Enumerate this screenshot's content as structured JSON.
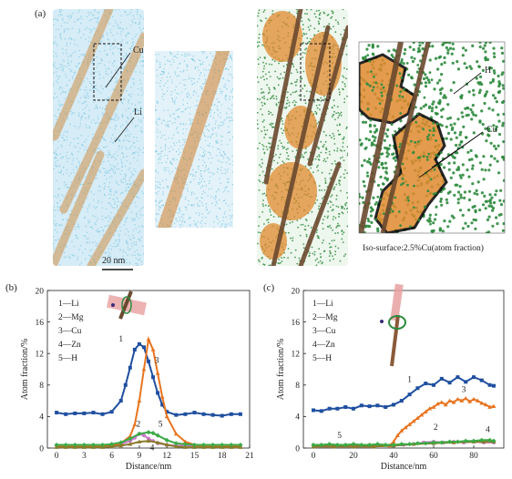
{
  "panel_a": {
    "label": "(a)",
    "labels": {
      "cu": "Cu",
      "li": "Li",
      "h": "H",
      "cu2": "Cu"
    },
    "scale_bar": "20 nm",
    "iso_caption": "Iso-surface:2.5%Cu(atom fraction)",
    "colors": {
      "li": "#7ec8e3",
      "cu": "#e08a2e",
      "h": "#2e8b3e",
      "rod": "#6b4a2f"
    }
  },
  "chart_data": [
    {
      "type": "line",
      "panel": "(b)",
      "xlabel": "Distance/nm",
      "ylabel": "Atom fraction/%",
      "xlim": [
        -1,
        21
      ],
      "ylim": [
        0,
        20
      ],
      "xticks": [
        0,
        3,
        6,
        9,
        12,
        15,
        18,
        21
      ],
      "yticks": [
        0,
        4,
        8,
        12,
        16,
        20
      ],
      "legend": [
        "1—Li",
        "2—Mg",
        "3—Cu",
        "4—Zn",
        "5—H"
      ],
      "series": [
        {
          "key": "1",
          "color": "#1f4fa0",
          "marker": "square",
          "x": [
            0,
            1,
            2,
            3,
            4,
            5,
            6,
            7,
            7.5,
            8,
            8.5,
            9,
            9.5,
            10,
            10.5,
            11,
            11.5,
            12,
            13,
            14,
            15,
            16,
            17,
            18,
            19,
            20
          ],
          "y": [
            4.5,
            4.3,
            4.4,
            4.4,
            4.5,
            4.3,
            4.6,
            6.0,
            8.0,
            10.2,
            12.5,
            13.2,
            12.8,
            11.0,
            9.0,
            7.0,
            5.5,
            4.6,
            4.2,
            4.3,
            4.5,
            4.3,
            4.2,
            4.1,
            4.3,
            4.3
          ]
        },
        {
          "key": "2",
          "color": "#c678c8",
          "marker": "circle",
          "x": [
            0,
            1,
            2,
            3,
            4,
            5,
            6,
            7,
            8,
            8.5,
            9,
            9.5,
            10,
            10.5,
            11,
            12,
            13,
            14,
            15,
            16,
            17,
            18,
            19,
            20
          ],
          "y": [
            0.3,
            0.3,
            0.3,
            0.3,
            0.3,
            0.3,
            0.3,
            0.5,
            0.9,
            1.3,
            1.8,
            1.6,
            1.2,
            0.9,
            0.6,
            0.4,
            0.3,
            0.3,
            0.3,
            0.3,
            0.3,
            0.3,
            0.3,
            0.3
          ]
        },
        {
          "key": "3",
          "color": "#e8741f",
          "marker": "triangle",
          "x": [
            0,
            1,
            2,
            3,
            4,
            5,
            6,
            7,
            8,
            8.5,
            9,
            9.5,
            10,
            10.5,
            11,
            11.5,
            12,
            13,
            14,
            15,
            16,
            17,
            18,
            19,
            20
          ],
          "y": [
            0.2,
            0.2,
            0.2,
            0.2,
            0.2,
            0.2,
            0.3,
            0.6,
            1.5,
            3.0,
            6.0,
            10.0,
            13.8,
            12.5,
            9.5,
            6.5,
            4.0,
            1.8,
            0.8,
            0.4,
            0.3,
            0.2,
            0.2,
            0.2,
            0.2
          ]
        },
        {
          "key": "4",
          "color": "#8a7a2a",
          "marker": "triangle",
          "x": [
            0,
            1,
            2,
            3,
            4,
            5,
            6,
            7,
            8,
            9,
            10,
            11,
            12,
            13,
            14,
            15,
            16,
            17,
            18,
            19,
            20
          ],
          "y": [
            0.1,
            0.1,
            0.1,
            0.1,
            0.1,
            0.1,
            0.2,
            0.3,
            0.5,
            0.8,
            0.9,
            0.7,
            0.4,
            0.2,
            0.1,
            0.1,
            0.1,
            0.1,
            0.1,
            0.1,
            0.1
          ]
        },
        {
          "key": "5",
          "color": "#3aaa45",
          "marker": "diamond",
          "x": [
            0,
            1,
            2,
            3,
            4,
            5,
            6,
            7,
            8,
            9,
            10,
            10.5,
            11,
            12,
            13,
            14,
            15,
            16,
            17,
            18,
            19,
            20
          ],
          "y": [
            0.4,
            0.4,
            0.4,
            0.4,
            0.4,
            0.4,
            0.5,
            0.7,
            1.2,
            1.8,
            2.0,
            1.9,
            1.6,
            1.0,
            0.6,
            0.5,
            0.4,
            0.4,
            0.4,
            0.4,
            0.4,
            0.4
          ]
        }
      ],
      "curve_labels": [
        {
          "text": "1",
          "x": 7.0,
          "y": 13.5
        },
        {
          "text": "2",
          "x": 8.9,
          "y": 2.7
        },
        {
          "text": "3",
          "x": 10.9,
          "y": 10.8
        },
        {
          "text": "4",
          "x": 10.4,
          "y": -0.3
        },
        {
          "text": "5",
          "x": 11.3,
          "y": 2.7
        }
      ]
    },
    {
      "type": "line",
      "panel": "(c)",
      "xlabel": "Distance/nm",
      "ylabel": "Atom fraction/%",
      "xlim": [
        -5,
        95
      ],
      "ylim": [
        0,
        20
      ],
      "xticks": [
        0,
        20,
        40,
        60,
        80
      ],
      "yticks": [
        0,
        4,
        8,
        12,
        16,
        20
      ],
      "legend": [
        "1—Li",
        "2—Mg",
        "3—Cu",
        "4—Zn",
        "5—H"
      ],
      "series": [
        {
          "key": "1",
          "color": "#1f4fa0",
          "marker": "square",
          "x": [
            0,
            4,
            8,
            12,
            16,
            20,
            24,
            28,
            32,
            36,
            40,
            44,
            48,
            52,
            56,
            60,
            64,
            68,
            72,
            76,
            80,
            84,
            88,
            90
          ],
          "y": [
            4.8,
            4.7,
            5.0,
            5.0,
            5.2,
            5.0,
            5.4,
            5.3,
            5.4,
            5.2,
            5.5,
            6.0,
            6.8,
            7.6,
            8.2,
            8.0,
            8.8,
            8.3,
            9.0,
            8.4,
            9.0,
            8.6,
            8.0,
            7.9
          ]
        },
        {
          "key": "2",
          "color": "#c678c8",
          "marker": "circle",
          "x": [
            0,
            10,
            20,
            30,
            40,
            45,
            50,
            55,
            60,
            65,
            70,
            75,
            80,
            85,
            90
          ],
          "y": [
            0.3,
            0.3,
            0.3,
            0.3,
            0.3,
            0.4,
            0.5,
            0.7,
            0.8,
            0.7,
            0.8,
            0.7,
            0.8,
            0.7,
            0.7
          ]
        },
        {
          "key": "3",
          "color": "#e8741f",
          "marker": "triangle",
          "x": [
            0,
            10,
            20,
            30,
            38,
            40,
            42,
            44,
            46,
            48,
            50,
            52,
            54,
            56,
            58,
            60,
            62,
            64,
            66,
            68,
            70,
            72,
            74,
            76,
            78,
            80,
            82,
            84,
            86,
            88,
            90
          ],
          "y": [
            0.2,
            0.2,
            0.2,
            0.2,
            0.3,
            0.8,
            1.6,
            2.2,
            2.6,
            3.0,
            3.4,
            3.8,
            4.2,
            4.6,
            5.0,
            5.2,
            5.6,
            5.8,
            5.5,
            6.0,
            5.8,
            6.2,
            6.0,
            6.3,
            5.9,
            6.2,
            6.0,
            5.7,
            5.5,
            5.2,
            5.3
          ]
        },
        {
          "key": "4",
          "color": "#8a7a2a",
          "marker": "triangle",
          "x": [
            0,
            10,
            20,
            30,
            40,
            50,
            60,
            70,
            80,
            85,
            90
          ],
          "y": [
            0.2,
            0.2,
            0.2,
            0.2,
            0.3,
            0.5,
            0.6,
            0.7,
            0.8,
            0.8,
            0.8
          ]
        },
        {
          "key": "5",
          "color": "#3aaa45",
          "marker": "diamond",
          "x": [
            0,
            4,
            8,
            12,
            16,
            20,
            24,
            28,
            32,
            36,
            40,
            44,
            48,
            52,
            56,
            60,
            64,
            68,
            72,
            76,
            80,
            84,
            88,
            90
          ],
          "y": [
            0.4,
            0.4,
            0.5,
            0.4,
            0.4,
            0.5,
            0.4,
            0.4,
            0.5,
            0.4,
            0.4,
            0.5,
            0.5,
            0.6,
            0.6,
            0.7,
            0.7,
            0.8,
            0.8,
            0.9,
            0.9,
            1.0,
            1.0,
            0.9
          ]
        }
      ],
      "curve_labels": [
        {
          "text": "1",
          "x": 48,
          "y": 8.4
        },
        {
          "text": "2",
          "x": 61,
          "y": 2.3
        },
        {
          "text": "3",
          "x": 75,
          "y": 7.1
        },
        {
          "text": "4",
          "x": 87,
          "y": 2.0
        },
        {
          "text": "5",
          "x": 13,
          "y": 1.3
        }
      ]
    }
  ]
}
